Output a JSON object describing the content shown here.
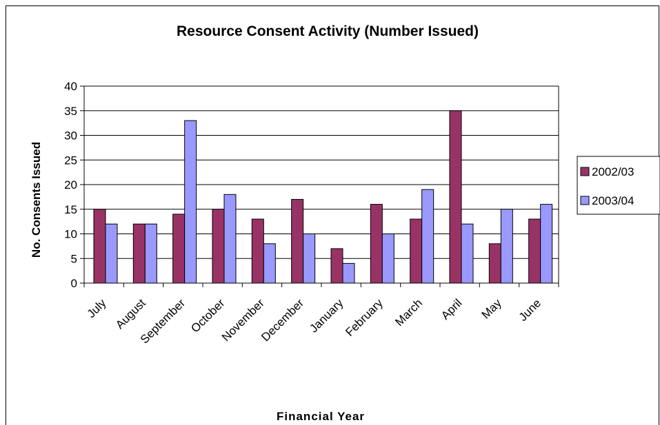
{
  "colors": {
    "series_2002_03": "#993366",
    "series_2003_04": "#9999ff",
    "background": "#ffffff",
    "axes": "#000000"
  },
  "chart_data": {
    "type": "bar",
    "title": "Resource Consent Activity (Number Issued)",
    "xlabel": "Financial Year",
    "ylabel": "No. Consents Issued",
    "ylim": [
      0,
      40
    ],
    "yticks": [
      0,
      5,
      10,
      15,
      20,
      25,
      30,
      35,
      40
    ],
    "grid": true,
    "legend_position": "right",
    "categories": [
      "July",
      "August",
      "September",
      "October",
      "November",
      "December",
      "January",
      "February",
      "March",
      "April",
      "May",
      "June"
    ],
    "series": [
      {
        "name": "2002/03",
        "color": "#993366",
        "values": [
          15,
          12,
          14,
          15,
          13,
          17,
          7,
          16,
          13,
          35,
          8,
          13
        ]
      },
      {
        "name": "2003/04",
        "color": "#9999ff",
        "values": [
          12,
          12,
          33,
          18,
          8,
          10,
          4,
          10,
          19,
          12,
          15,
          16
        ]
      }
    ]
  }
}
